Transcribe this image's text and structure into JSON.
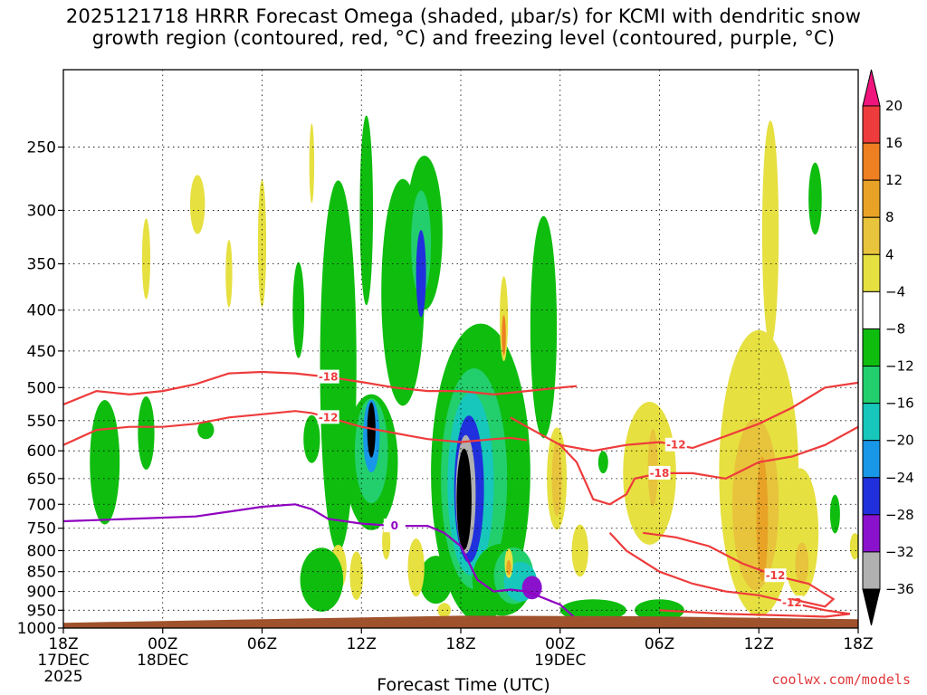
{
  "title_line1": "2025121718 HRRR Forecast Omega (shaded, μbar/s) for KCMI with dendritic snow",
  "title_line2": "growth region (contoured, red, °C) and freezing level (contoured, purple, °C)",
  "x_axis_label": "Forecast Time (UTC)",
  "credit": "coolwx.com/models",
  "chart_data": {
    "type": "heatmap",
    "title": "2025121718 HRRR Forecast Omega (shaded, μbar/s) for KCMI with dendritic snow growth region (contoured, red, °C) and freezing level (contoured, purple, °C)",
    "xlabel": "Forecast Time (UTC)",
    "ylabel": "",
    "xlim": [
      0,
      48
    ],
    "ylim": [
      1000,
      200
    ],
    "y_scale": "log-pressure",
    "grid": true,
    "x_ticks": [
      {
        "x": 0,
        "lines": [
          "18Z",
          "17DEC",
          "2025"
        ]
      },
      {
        "x": 6,
        "lines": [
          "00Z",
          "18DEC"
        ]
      },
      {
        "x": 12,
        "lines": [
          "06Z"
        ]
      },
      {
        "x": 18,
        "lines": [
          "12Z"
        ]
      },
      {
        "x": 24,
        "lines": [
          "18Z"
        ]
      },
      {
        "x": 30,
        "lines": [
          "00Z",
          "19DEC"
        ]
      },
      {
        "x": 36,
        "lines": [
          "06Z"
        ]
      },
      {
        "x": 42,
        "lines": [
          "12Z"
        ]
      },
      {
        "x": 48,
        "lines": [
          "18Z"
        ]
      }
    ],
    "y_ticks": [
      1000,
      950,
      900,
      850,
      800,
      750,
      700,
      650,
      600,
      550,
      500,
      450,
      400,
      350,
      300,
      250
    ],
    "y_tick_labels": [
      "1000",
      "950",
      "900",
      "850",
      "800",
      "750",
      "700",
      "650",
      "600",
      "550",
      "500",
      "450",
      "400",
      "350",
      "300",
      "250"
    ],
    "colorbar": {
      "labels": [
        "20",
        "16",
        "12",
        "8",
        "4",
        "−4",
        "−8",
        "−12",
        "−16",
        "−20",
        "−24",
        "−28",
        "−32",
        "−36"
      ],
      "colors": [
        "#f0147d",
        "#ee3b3b",
        "#ee7f22",
        "#e8a327",
        "#e8c33c",
        "#e6e040",
        "#ffffff",
        "#0fbd0f",
        "#22cf6c",
        "#17c7bb",
        "#1897e8",
        "#2030dc",
        "#8a12cc",
        "#b0b0b0",
        "#000000"
      ]
    },
    "shading": [
      {
        "v": -8,
        "x": 2.5,
        "p": 620,
        "rx": 0.9,
        "rp": 110
      },
      {
        "v": -8,
        "x": 5.0,
        "p": 570,
        "rx": 0.5,
        "rp": 60
      },
      {
        "v": -8,
        "x": 8.6,
        "p": 565,
        "rx": 0.5,
        "rp": 15
      },
      {
        "v": 4,
        "x": 5.0,
        "p": 345,
        "rx": 0.25,
        "rp": 40
      },
      {
        "v": 4,
        "x": 8.1,
        "p": 295,
        "rx": 0.45,
        "rp": 25
      },
      {
        "v": 4,
        "x": 10.0,
        "p": 360,
        "rx": 0.2,
        "rp": 35
      },
      {
        "v": 4,
        "x": 12.0,
        "p": 330,
        "rx": 0.25,
        "rp": 60
      },
      {
        "v": 4,
        "x": 15.0,
        "p": 262,
        "rx": 0.15,
        "rp": 30
      },
      {
        "v": -8,
        "x": 14.2,
        "p": 400,
        "rx": 0.35,
        "rp": 55
      },
      {
        "v": -8,
        "x": 15.0,
        "p": 580,
        "rx": 0.5,
        "rp": 40
      },
      {
        "v": -8,
        "x": 16.6,
        "p": 470,
        "rx": 1.1,
        "rp": 230
      },
      {
        "v": -8,
        "x": 20.5,
        "p": 380,
        "rx": 1.3,
        "rp": 120
      },
      {
        "v": -8,
        "x": 18.3,
        "p": 300,
        "rx": 0.4,
        "rp": 80
      },
      {
        "v": -8,
        "x": 18.6,
        "p": 620,
        "rx": 1.6,
        "rp": 120
      },
      {
        "v": -12,
        "x": 18.6,
        "p": 600,
        "rx": 1.0,
        "rp": 90
      },
      {
        "v": -20,
        "x": 18.6,
        "p": 575,
        "rx": 0.5,
        "rp": 60
      },
      {
        "v": -36,
        "x": 18.6,
        "p": 565,
        "rx": 0.25,
        "rp": 45
      },
      {
        "v": -8,
        "x": 21.8,
        "p": 320,
        "rx": 1.1,
        "rp": 70
      },
      {
        "v": -12,
        "x": 21.6,
        "p": 330,
        "rx": 0.6,
        "rp": 50
      },
      {
        "v": -24,
        "x": 21.6,
        "p": 360,
        "rx": 0.3,
        "rp": 45
      },
      {
        "v": -8,
        "x": 25.2,
        "p": 640,
        "rx": 3.0,
        "rp": 260
      },
      {
        "v": -12,
        "x": 24.8,
        "p": 650,
        "rx": 2.0,
        "rp": 200
      },
      {
        "v": -16,
        "x": 24.6,
        "p": 660,
        "rx": 1.4,
        "rp": 170
      },
      {
        "v": -24,
        "x": 24.5,
        "p": 670,
        "rx": 0.9,
        "rp": 140
      },
      {
        "v": -32,
        "x": 24.3,
        "p": 680,
        "rx": 0.6,
        "rp": 115
      },
      {
        "v": -36,
        "x": 24.2,
        "p": 690,
        "rx": 0.45,
        "rp": 100
      },
      {
        "v": -8,
        "x": 22.5,
        "p": 870,
        "rx": 1.0,
        "rp": 60
      },
      {
        "v": -8,
        "x": 26.5,
        "p": 870,
        "rx": 1.8,
        "rp": 90
      },
      {
        "v": -12,
        "x": 27.2,
        "p": 860,
        "rx": 1.2,
        "rp": 70
      },
      {
        "v": -16,
        "x": 27.6,
        "p": 875,
        "rx": 1.0,
        "rp": 50
      },
      {
        "v": -28,
        "x": 28.3,
        "p": 890,
        "rx": 0.6,
        "rp": 30
      },
      {
        "v": 4,
        "x": 26.9,
        "p": 830,
        "rx": 0.25,
        "rp": 35
      },
      {
        "v": 12,
        "x": 26.9,
        "p": 840,
        "rx": 0.15,
        "rp": 18
      },
      {
        "v": 4,
        "x": 26.6,
        "p": 410,
        "rx": 0.25,
        "rp": 50
      },
      {
        "v": 16,
        "x": 26.6,
        "p": 430,
        "rx": 0.12,
        "rp": 25
      },
      {
        "v": -8,
        "x": 29.0,
        "p": 420,
        "rx": 0.8,
        "rp": 130
      },
      {
        "v": 4,
        "x": 21.3,
        "p": 840,
        "rx": 0.5,
        "rp": 70
      },
      {
        "v": 16,
        "x": 16.6,
        "p": 845,
        "rx": 0.35,
        "rp": 35
      },
      {
        "v": 4,
        "x": 16.6,
        "p": 840,
        "rx": 0.5,
        "rp": 55
      },
      {
        "v": -8,
        "x": 15.6,
        "p": 870,
        "rx": 1.3,
        "rp": 80
      },
      {
        "v": 4,
        "x": 17.7,
        "p": 860,
        "rx": 0.4,
        "rp": 60
      },
      {
        "v": 4,
        "x": 19.5,
        "p": 780,
        "rx": 0.25,
        "rp": 40
      },
      {
        "v": 4,
        "x": 23.0,
        "p": 950,
        "rx": 0.4,
        "rp": 20
      },
      {
        "v": -8,
        "x": 29.8,
        "p": 640,
        "rx": 0.35,
        "rp": 60
      },
      {
        "v": 4,
        "x": 29.8,
        "p": 650,
        "rx": 0.6,
        "rp": 95
      },
      {
        "v": 8,
        "x": 29.8,
        "p": 650,
        "rx": 0.3,
        "rp": 70
      },
      {
        "v": 4,
        "x": 31.2,
        "p": 800,
        "rx": 0.5,
        "rp": 60
      },
      {
        "v": -8,
        "x": 32.6,
        "p": 620,
        "rx": 0.3,
        "rp": 20
      },
      {
        "v": -8,
        "x": 32.0,
        "p": 950,
        "rx": 2.0,
        "rp": 30
      },
      {
        "v": -8,
        "x": 36.0,
        "p": 950,
        "rx": 1.5,
        "rp": 30
      },
      {
        "v": 4,
        "x": 35.4,
        "p": 640,
        "rx": 1.6,
        "rp": 130
      },
      {
        "v": 8,
        "x": 35.6,
        "p": 630,
        "rx": 0.3,
        "rp": 70
      },
      {
        "v": 4,
        "x": 42.0,
        "p": 640,
        "rx": 2.4,
        "rp": 250
      },
      {
        "v": 8,
        "x": 41.8,
        "p": 700,
        "rx": 1.4,
        "rp": 170
      },
      {
        "v": 12,
        "x": 42.2,
        "p": 730,
        "rx": 0.35,
        "rp": 130
      },
      {
        "v": 4,
        "x": 42.7,
        "p": 320,
        "rx": 0.5,
        "rp": 100
      },
      {
        "v": 4,
        "x": 44.5,
        "p": 760,
        "rx": 1.1,
        "rp": 140
      },
      {
        "v": 8,
        "x": 44.6,
        "p": 830,
        "rx": 0.4,
        "rp": 50
      },
      {
        "v": -8,
        "x": 45.4,
        "p": 290,
        "rx": 0.4,
        "rp": 30
      },
      {
        "v": -8,
        "x": 46.6,
        "p": 720,
        "rx": 0.3,
        "rp": 40
      },
      {
        "v": 4,
        "x": 47.8,
        "p": 790,
        "rx": 0.3,
        "rp": 30
      }
    ],
    "contours": [
      {
        "label": "-18",
        "color": "#ee3b3b",
        "points": [
          [
            0,
            525
          ],
          [
            2,
            505
          ],
          [
            4,
            510
          ],
          [
            6,
            505
          ],
          [
            8,
            495
          ],
          [
            10,
            480
          ],
          [
            12,
            478
          ],
          [
            14,
            480
          ],
          [
            16,
            485
          ],
          [
            18,
            492
          ],
          [
            20,
            500
          ],
          [
            22,
            505
          ],
          [
            24,
            505
          ],
          [
            26,
            510
          ],
          [
            28,
            505
          ],
          [
            30,
            500
          ],
          [
            31,
            498
          ]
        ]
      },
      {
        "label": "-12",
        "color": "#ee3b3b",
        "points": [
          [
            0,
            590
          ],
          [
            2,
            565
          ],
          [
            4,
            560
          ],
          [
            6,
            560
          ],
          [
            8,
            555
          ],
          [
            10,
            545
          ],
          [
            12,
            540
          ],
          [
            14,
            535
          ],
          [
            15,
            538
          ],
          [
            16,
            545
          ],
          [
            18,
            560
          ],
          [
            20,
            570
          ],
          [
            21,
            575
          ],
          [
            22,
            580
          ],
          [
            24,
            585
          ],
          [
            26,
            580
          ],
          [
            27,
            578
          ],
          [
            28,
            582
          ]
        ]
      },
      {
        "label": "-12",
        "color": "#ee3b3b",
        "points": [
          [
            27,
            545
          ],
          [
            28,
            560
          ],
          [
            30,
            590
          ],
          [
            32,
            600
          ],
          [
            34,
            590
          ],
          [
            36,
            585
          ],
          [
            37,
            590
          ],
          [
            38,
            595
          ],
          [
            40,
            575
          ],
          [
            42,
            555
          ],
          [
            44,
            530
          ],
          [
            46,
            500
          ],
          [
            48,
            493
          ]
        ]
      },
      {
        "label": "-18",
        "color": "#ee3b3b",
        "points": [
          [
            30,
            590
          ],
          [
            31,
            620
          ],
          [
            32,
            690
          ],
          [
            33,
            700
          ],
          [
            34,
            680
          ],
          [
            34.5,
            650
          ],
          [
            36,
            640
          ],
          [
            38,
            640
          ],
          [
            40,
            650
          ],
          [
            42,
            620
          ],
          [
            44,
            610
          ],
          [
            46,
            590
          ],
          [
            48,
            560
          ]
        ]
      },
      {
        "label": "-12",
        "color": "#ee3b3b",
        "points": [
          [
            33,
            760
          ],
          [
            34,
            800
          ],
          [
            36,
            850
          ],
          [
            38,
            880
          ],
          [
            40,
            900
          ],
          [
            42,
            910
          ],
          [
            44,
            930
          ],
          [
            46,
            950
          ],
          [
            47.5,
            960
          ],
          [
            46,
            968
          ],
          [
            44,
            965
          ],
          [
            40,
            960
          ],
          [
            36,
            950
          ]
        ]
      },
      {
        "label": "-12",
        "color": "#ee3b3b",
        "points": [
          [
            35,
            760
          ],
          [
            37,
            770
          ],
          [
            39,
            790
          ],
          [
            41,
            830
          ],
          [
            43,
            860
          ],
          [
            45,
            880
          ],
          [
            46.5,
            920
          ],
          [
            46,
            940
          ],
          [
            44,
            920
          ]
        ]
      },
      {
        "label": "0",
        "color": "#9000c0",
        "points": [
          [
            0,
            735
          ],
          [
            4,
            730
          ],
          [
            8,
            725
          ],
          [
            10,
            715
          ],
          [
            12,
            705
          ],
          [
            14,
            700
          ],
          [
            15,
            710
          ],
          [
            16,
            730
          ],
          [
            18,
            740
          ],
          [
            20,
            745
          ],
          [
            22,
            745
          ],
          [
            23,
            760
          ],
          [
            24,
            790
          ],
          [
            25,
            870
          ],
          [
            26,
            900
          ],
          [
            27,
            895
          ],
          [
            28,
            900
          ],
          [
            30,
            935
          ],
          [
            31,
            975
          ]
        ]
      }
    ],
    "surface_color": "#a0522d"
  }
}
